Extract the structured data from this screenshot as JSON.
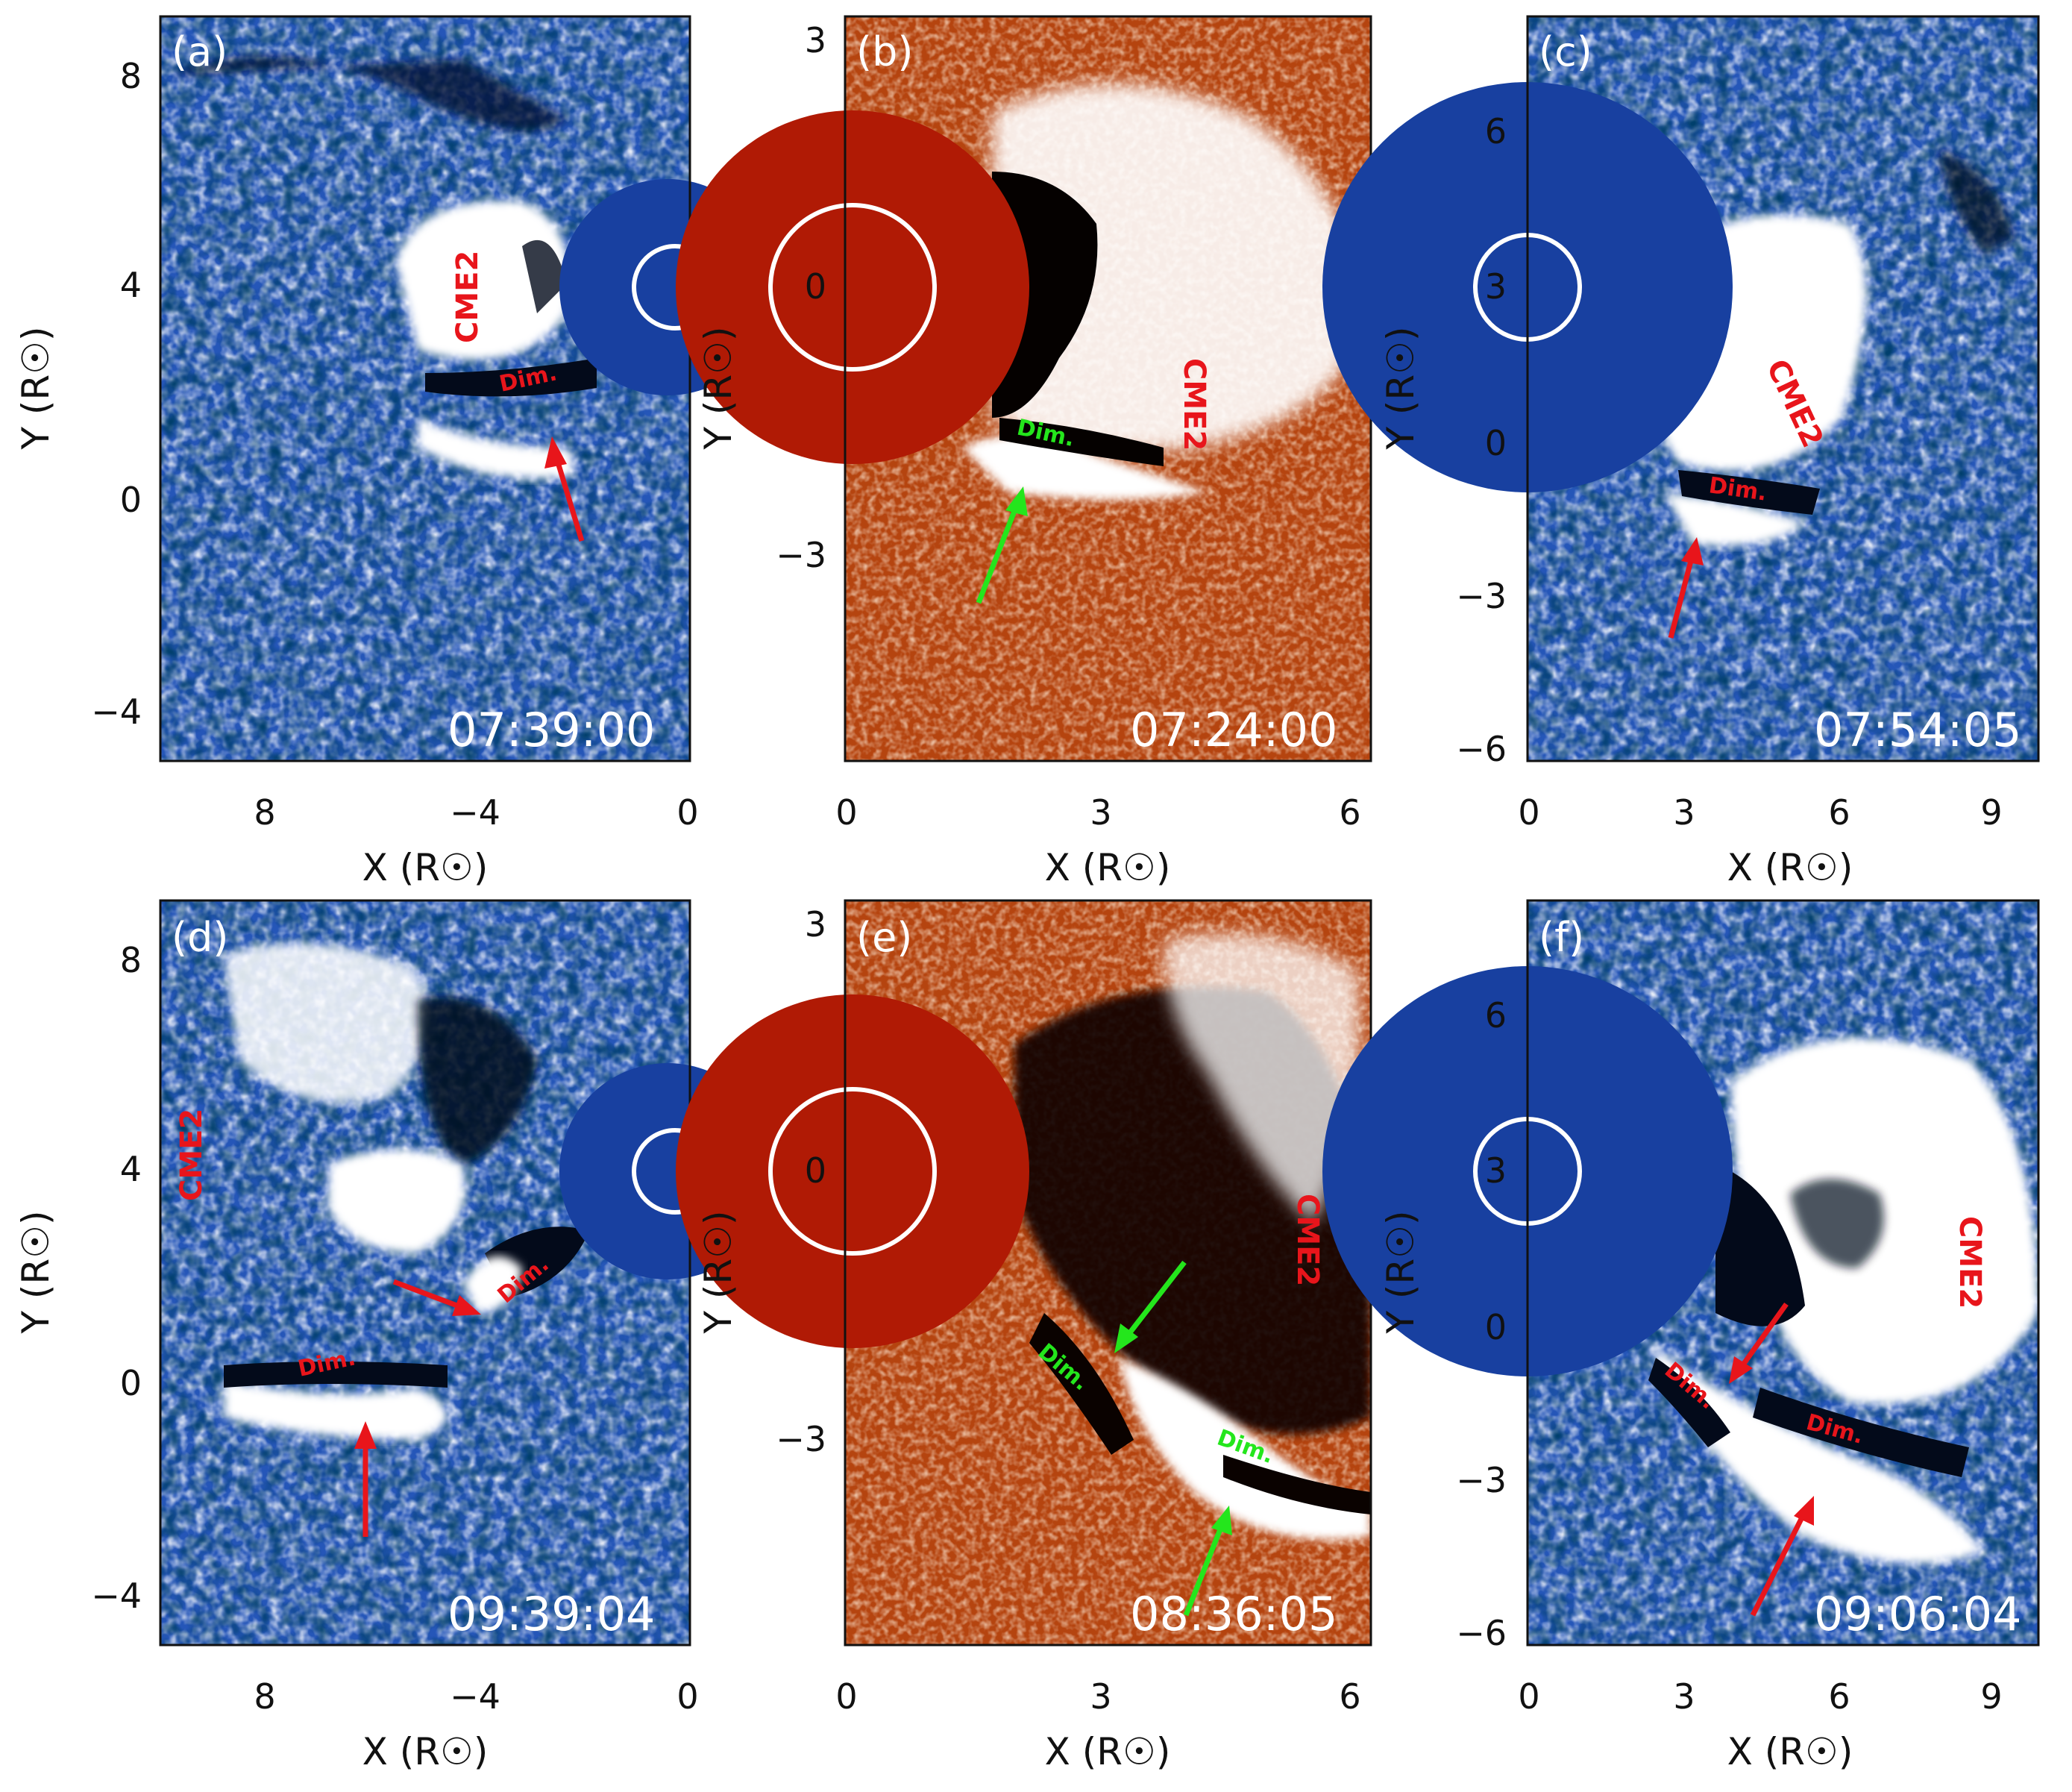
{
  "colors": {
    "blue_bg": "#2556b8",
    "blue_occulter": "#1840a0",
    "red_bg": "#b5440f",
    "red_occulter": "#b01a05",
    "annotation_red": "#e8151b",
    "annotation_green": "#24e61c"
  },
  "panels": [
    {
      "label": "(a)",
      "time": "07:39:00",
      "scheme": "blue",
      "xticks": [
        "8",
        "−4",
        "0"
      ],
      "yticks": [
        "8",
        "4",
        "0",
        "−4"
      ],
      "xlabel": "X (R☉)",
      "ylabel": "Y (R☉)",
      "cme_label": "CME2",
      "dim_labels": [
        "Dim."
      ],
      "arrow_color": "red"
    },
    {
      "label": "(b)",
      "time": "07:24:00",
      "scheme": "red",
      "xticks": [
        "0",
        "3",
        "6"
      ],
      "yticks": [
        "3",
        "0",
        "−3"
      ],
      "xlabel": "X (R☉)",
      "ylabel": "Y (R☉)",
      "cme_label": "CME2",
      "dim_labels": [
        "Dim."
      ],
      "arrow_color": "green"
    },
    {
      "label": "(c)",
      "time": "07:54:05",
      "scheme": "blue",
      "xticks": [
        "0",
        "3",
        "6",
        "9"
      ],
      "yticks": [
        "6",
        "3",
        "0",
        "−3",
        "−6"
      ],
      "xlabel": "X (R☉)",
      "ylabel": "Y (R☉)",
      "cme_label": "CME2",
      "dim_labels": [
        "Dim."
      ],
      "arrow_color": "red"
    },
    {
      "label": "(d)",
      "time": "09:39:04",
      "scheme": "blue",
      "xticks": [
        "8",
        "−4",
        "0"
      ],
      "yticks": [
        "8",
        "4",
        "0",
        "−4"
      ],
      "xlabel": "X (R☉)",
      "ylabel": "Y (R☉)",
      "cme_label": "CME2",
      "dim_labels": [
        "Dim.",
        "Dim."
      ],
      "arrow_color": "red"
    },
    {
      "label": "(e)",
      "time": "08:36:05",
      "scheme": "red",
      "xticks": [
        "0",
        "3",
        "6"
      ],
      "yticks": [
        "3",
        "0",
        "−3"
      ],
      "xlabel": "X (R☉)",
      "ylabel": "Y (R☉)",
      "cme_label": "CME2",
      "dim_labels": [
        "Dim.",
        "Dim."
      ],
      "arrow_color": "green"
    },
    {
      "label": "(f)",
      "time": "09:06:04",
      "scheme": "blue",
      "xticks": [
        "0",
        "3",
        "6",
        "9"
      ],
      "yticks": [
        "6",
        "3",
        "0",
        "−3",
        "−6"
      ],
      "xlabel": "X (R☉)",
      "ylabel": "Y (R☉)",
      "cme_label": "CME2",
      "dim_labels": [
        "Dim.",
        "Dim."
      ],
      "arrow_color": "red"
    }
  ]
}
